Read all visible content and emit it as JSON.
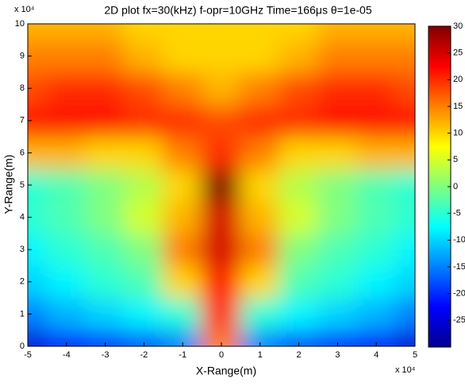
{
  "chart_data": {
    "type": "contour",
    "title": "2D plot  fx=30(kHz)   f-opr=10GHz  Time=166μs  θ=1e-05",
    "xlabel": "X-Range(m)",
    "ylabel": "Y-Range(m)",
    "x_exponent_label": "x 10⁴",
    "y_exponent_label": "x 10⁴",
    "colormap": "jet",
    "x": [
      -5,
      -4,
      -3,
      -2,
      -1,
      0,
      1,
      2,
      3,
      4,
      5
    ],
    "y": [
      0,
      1,
      2,
      3,
      4,
      5,
      6,
      7,
      8,
      9,
      10
    ],
    "z": [
      [
        -25,
        -22,
        -20,
        -18,
        -15,
        15,
        -15,
        -18,
        -20,
        -22,
        -25
      ],
      [
        -15,
        -12,
        -10,
        -8,
        -5,
        20,
        -5,
        -8,
        -10,
        -12,
        -15
      ],
      [
        -10,
        -8,
        -5,
        -3,
        10,
        22,
        10,
        -3,
        -5,
        -8,
        -10
      ],
      [
        -8,
        -5,
        -3,
        0,
        15,
        25,
        15,
        0,
        -3,
        -5,
        -8
      ],
      [
        -5,
        -3,
        0,
        5,
        12,
        25,
        12,
        5,
        0,
        -3,
        -5
      ],
      [
        -5,
        -3,
        0,
        3,
        10,
        30,
        10,
        3,
        0,
        -3,
        -5
      ],
      [
        12,
        12,
        10,
        10,
        15,
        20,
        15,
        10,
        10,
        12,
        12
      ],
      [
        22,
        22,
        22,
        20,
        20,
        18,
        20,
        20,
        22,
        22,
        22
      ],
      [
        18,
        20,
        20,
        18,
        15,
        12,
        15,
        18,
        20,
        20,
        18
      ],
      [
        15,
        15,
        15,
        12,
        10,
        10,
        10,
        12,
        15,
        15,
        15
      ],
      [
        12,
        12,
        12,
        10,
        10,
        10,
        10,
        10,
        12,
        12,
        12
      ]
    ],
    "xlim": [
      -5,
      5
    ],
    "ylim": [
      0,
      10
    ],
    "xticks": [
      -5,
      -4,
      -3,
      -2,
      -1,
      0,
      1,
      2,
      3,
      4,
      5
    ],
    "yticks": [
      0,
      1,
      2,
      3,
      4,
      5,
      6,
      7,
      8,
      9,
      10
    ],
    "clim": [
      -30,
      30
    ],
    "cticks": [
      -25,
      -20,
      -15,
      -10,
      -5,
      0,
      5,
      10,
      15,
      20,
      25,
      30
    ]
  }
}
